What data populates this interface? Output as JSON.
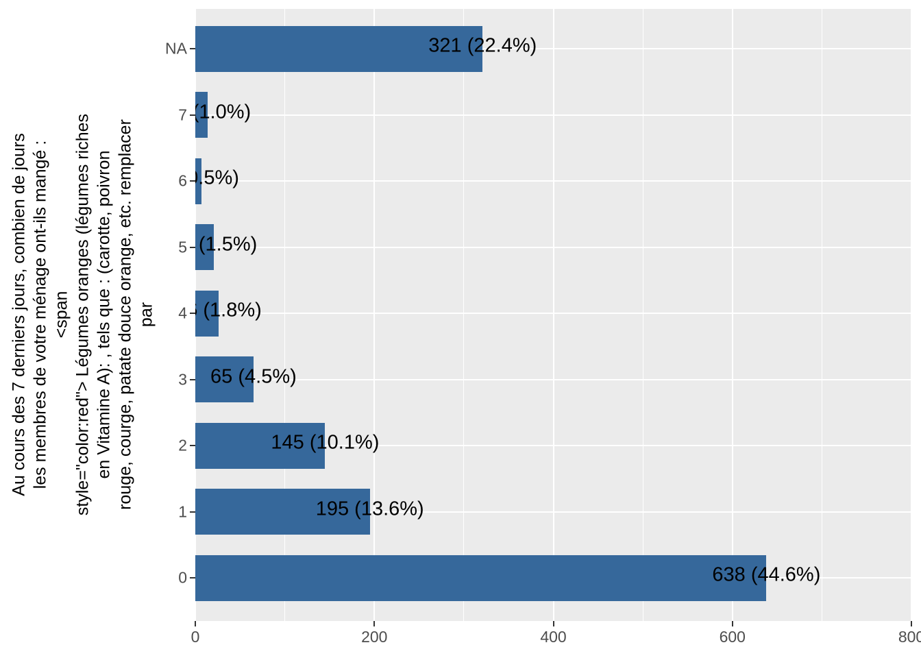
{
  "chart_data": {
    "type": "bar",
    "orientation": "horizontal",
    "title": "",
    "xlabel": "",
    "ylabel_lines": [
      "Au cours des 7 derniers jours, combien de jours",
      "les membres de votre ménage ont-ils mangé :",
      "<span",
      "style=\"color:red\"> Légumes oranges (légumes riches",
      "en Vitamine A): , tels que : (carotte, poivron",
      "rouge, courge, patate douce orange, etc. remplacer",
      "par"
    ],
    "categories": [
      "NA",
      "7",
      "6",
      "5",
      "4",
      "3",
      "2",
      "1",
      "0"
    ],
    "values": [
      321,
      14,
      7,
      21,
      26,
      65,
      145,
      195,
      638
    ],
    "bar_labels": [
      "321 (22.4%)",
      "14 (1.0%)",
      "7 (0.5%)",
      "21 (1.5%)",
      "26 (1.8%)",
      "65 (4.5%)",
      "145 (10.1%)",
      "195 (13.6%)",
      "638 (44.6%)"
    ],
    "x_ticks": [
      0,
      200,
      400,
      600,
      800
    ],
    "x_minor_gridlines": [
      100,
      300,
      500,
      700
    ],
    "xlim": [
      0,
      800
    ],
    "legend": "none",
    "grid": "on",
    "colors": {
      "bar_fill": "#36689B",
      "panel_background": "#EBEBEB",
      "gridline": "#FFFFFF",
      "axis_text": "#4D4D4D",
      "tick_mark": "#333333",
      "bar_label_text": "#000000"
    }
  }
}
